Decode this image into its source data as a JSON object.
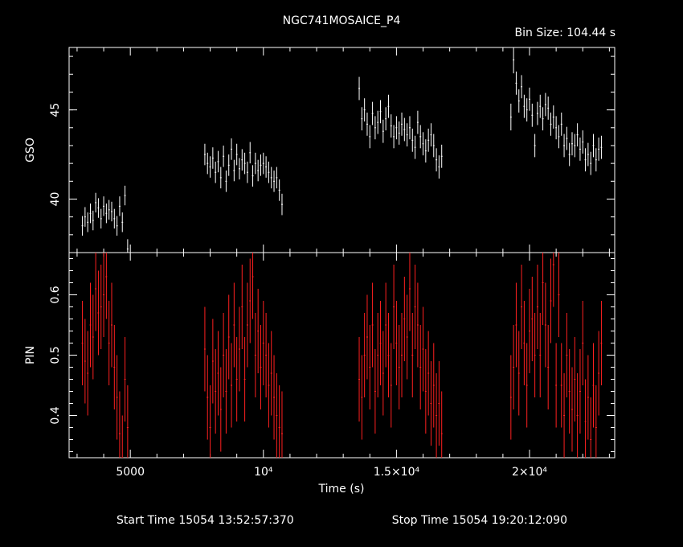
{
  "title": "NGC741MOSAICE_P4",
  "bin_size_label": "Bin Size: 104.44 s",
  "start_time_label": "Start Time 15054 13:52:57:370",
  "stop_time_label": "Stop Time 15054 19:20:12:090",
  "chart_data": {
    "type": "scatter",
    "title": "NGC741MOSAICE_P4",
    "xlabel": "Time (s)",
    "xlim": [
      2700,
      23200
    ],
    "x_ticks": [
      {
        "value": 5000,
        "label": "5000"
      },
      {
        "value": 10000,
        "label": "10⁴"
      },
      {
        "value": 15000,
        "label": "1.5×10⁴"
      },
      {
        "value": 20000,
        "label": "2×10⁴"
      }
    ],
    "panels": [
      {
        "name": "GSO",
        "ylabel": "GSO",
        "ylim": [
          37.0,
          48.5
        ],
        "y_ticks": [
          {
            "value": 40,
            "label": "40"
          },
          {
            "value": 45,
            "label": "45"
          }
        ],
        "color": "#ffffff",
        "x": [
          3200,
          3300,
          3400,
          3500,
          3600,
          3700,
          3800,
          3900,
          4000,
          4100,
          4200,
          4300,
          4400,
          4500,
          4600,
          4700,
          4800,
          4900,
          7800,
          7900,
          8000,
          8100,
          8200,
          8300,
          8400,
          8500,
          8600,
          8700,
          8800,
          8900,
          9000,
          9100,
          9200,
          9300,
          9400,
          9500,
          9600,
          9700,
          9800,
          9900,
          10000,
          10100,
          10200,
          10300,
          10400,
          10500,
          10600,
          10700,
          13600,
          13700,
          13800,
          13900,
          14000,
          14100,
          14200,
          14300,
          14400,
          14500,
          14600,
          14700,
          14800,
          14900,
          15000,
          15100,
          15200,
          15300,
          15400,
          15500,
          15600,
          15700,
          15800,
          15900,
          16000,
          16100,
          16200,
          16300,
          16400,
          16500,
          16600,
          16700,
          19300,
          19400,
          19500,
          19600,
          19700,
          19800,
          19900,
          20000,
          20100,
          20200,
          20300,
          20400,
          20500,
          20600,
          20700,
          20800,
          20900,
          21000,
          21100,
          21200,
          21300,
          21400,
          21500,
          21600,
          21700,
          21800,
          21900,
          22000,
          22100,
          22200,
          22300,
          22400,
          22500,
          22600,
          22700
        ],
        "y": [
          38.5,
          39.0,
          38.7,
          39.2,
          38.8,
          39.8,
          39.5,
          38.9,
          39.6,
          39.2,
          39.4,
          39.3,
          38.9,
          38.5,
          39.6,
          38.7,
          40.2,
          37.2,
          42.5,
          42.0,
          41.8,
          42.3,
          41.5,
          42.1,
          41.2,
          42.4,
          41.0,
          41.9,
          42.8,
          41.6,
          42.5,
          41.7,
          42.2,
          42.0,
          41.5,
          42.6,
          41.3,
          42.0,
          41.6,
          41.9,
          42.0,
          41.8,
          41.5,
          41.2,
          41.0,
          41.2,
          40.5,
          39.7,
          46.2,
          44.5,
          45.0,
          44.2,
          43.5,
          44.8,
          44.0,
          44.3,
          44.9,
          43.8,
          44.5,
          45.2,
          44.1,
          43.5,
          44.0,
          43.7,
          44.2,
          43.9,
          43.6,
          44.0,
          43.3,
          42.9,
          44.3,
          43.5,
          43.1,
          42.7,
          43.3,
          43.6,
          43.0,
          42.2,
          41.8,
          42.4,
          44.6,
          47.8,
          46.5,
          45.5,
          46.3,
          45.2,
          45.0,
          45.6,
          44.7,
          43.0,
          44.8,
          45.2,
          44.5,
          45.3,
          45.1,
          44.2,
          44.6,
          44.0,
          43.5,
          44.2,
          43.0,
          43.4,
          42.5,
          43.1,
          43.0,
          43.6,
          42.8,
          43.2,
          42.2,
          42.5,
          42.0,
          43.0,
          42.2,
          42.8,
          42.9
        ],
        "yerr": [
          0.55,
          0.55,
          0.55,
          0.55,
          0.55,
          0.55,
          0.55,
          0.55,
          0.55,
          0.55,
          0.55,
          0.55,
          0.55,
          0.55,
          0.55,
          0.55,
          0.55,
          0.55,
          0.6,
          0.6,
          0.6,
          0.6,
          0.6,
          0.6,
          0.6,
          0.6,
          0.6,
          0.6,
          0.6,
          0.6,
          0.6,
          0.6,
          0.6,
          0.6,
          0.6,
          0.6,
          0.6,
          0.6,
          0.6,
          0.6,
          0.6,
          0.6,
          0.6,
          0.6,
          0.6,
          0.6,
          0.6,
          0.6,
          0.65,
          0.65,
          0.65,
          0.65,
          0.65,
          0.65,
          0.65,
          0.65,
          0.65,
          0.65,
          0.65,
          0.65,
          0.65,
          0.65,
          0.65,
          0.65,
          0.65,
          0.65,
          0.65,
          0.65,
          0.65,
          0.65,
          0.65,
          0.65,
          0.65,
          0.65,
          0.65,
          0.65,
          0.65,
          0.65,
          0.65,
          0.65,
          0.75,
          0.75,
          0.65,
          0.65,
          0.65,
          0.65,
          0.65,
          0.65,
          0.65,
          0.65,
          0.65,
          0.65,
          0.65,
          0.65,
          0.65,
          0.65,
          0.65,
          0.65,
          0.65,
          0.65,
          0.65,
          0.65,
          0.65,
          0.65,
          0.65,
          0.65,
          0.65,
          0.65,
          0.65,
          0.65,
          0.65,
          0.65,
          0.65,
          0.65,
          0.65
        ]
      },
      {
        "name": "PIN",
        "ylabel": "PIN",
        "ylim": [
          0.33,
          0.67
        ],
        "y_ticks": [
          {
            "value": 0.4,
            "label": "0.4"
          },
          {
            "value": 0.5,
            "label": "0.5"
          },
          {
            "value": 0.6,
            "label": "0.6"
          }
        ],
        "color": "#ff2020",
        "x": [
          3200,
          3300,
          3400,
          3500,
          3600,
          3700,
          3800,
          3900,
          4000,
          4100,
          4200,
          4300,
          4400,
          4500,
          4600,
          4700,
          4800,
          4900,
          7800,
          7900,
          8000,
          8100,
          8200,
          8300,
          8400,
          8500,
          8600,
          8700,
          8800,
          8900,
          9000,
          9100,
          9200,
          9300,
          9400,
          9500,
          9600,
          9700,
          9800,
          9900,
          10000,
          10100,
          10200,
          10300,
          10400,
          10500,
          10600,
          10700,
          13600,
          13700,
          13800,
          13900,
          14000,
          14100,
          14200,
          14300,
          14400,
          14500,
          14600,
          14700,
          14800,
          14900,
          15000,
          15100,
          15200,
          15300,
          15400,
          15500,
          15600,
          15700,
          15800,
          15900,
          16000,
          16100,
          16200,
          16300,
          16400,
          16500,
          16600,
          16700,
          19300,
          19400,
          19500,
          19600,
          19700,
          19800,
          19900,
          20000,
          20100,
          20200,
          20300,
          20400,
          20500,
          20600,
          20700,
          20800,
          20900,
          21000,
          21100,
          21200,
          21300,
          21400,
          21500,
          21600,
          21700,
          21800,
          21900,
          22000,
          22100,
          22200,
          22300,
          22400,
          22500,
          22600,
          22700
        ],
        "y": [
          0.52,
          0.49,
          0.47,
          0.55,
          0.53,
          0.61,
          0.57,
          0.58,
          0.6,
          0.63,
          0.52,
          0.55,
          0.48,
          0.43,
          0.37,
          0.33,
          0.46,
          0.38,
          0.51,
          0.43,
          0.38,
          0.49,
          0.44,
          0.47,
          0.41,
          0.5,
          0.44,
          0.53,
          0.45,
          0.55,
          0.46,
          0.51,
          0.58,
          0.46,
          0.55,
          0.59,
          0.63,
          0.5,
          0.54,
          0.48,
          0.52,
          0.5,
          0.45,
          0.47,
          0.43,
          0.4,
          0.38,
          0.37,
          0.46,
          0.43,
          0.5,
          0.53,
          0.48,
          0.55,
          0.44,
          0.5,
          0.52,
          0.47,
          0.55,
          0.5,
          0.45,
          0.58,
          0.52,
          0.48,
          0.5,
          0.56,
          0.53,
          0.61,
          0.5,
          0.58,
          0.55,
          0.48,
          0.51,
          0.44,
          0.47,
          0.42,
          0.45,
          0.4,
          0.42,
          0.37,
          0.43,
          0.48,
          0.55,
          0.47,
          0.58,
          0.52,
          0.45,
          0.54,
          0.56,
          0.5,
          0.58,
          0.5,
          0.62,
          0.55,
          0.48,
          0.59,
          0.65,
          0.45,
          0.6,
          0.45,
          0.4,
          0.5,
          0.44,
          0.41,
          0.46,
          0.4,
          0.44,
          0.52,
          0.39,
          0.43,
          0.36,
          0.45,
          0.38,
          0.47,
          0.52
        ],
        "yerr": [
          0.07,
          0.07,
          0.07,
          0.07,
          0.07,
          0.07,
          0.07,
          0.07,
          0.07,
          0.07,
          0.07,
          0.07,
          0.07,
          0.07,
          0.07,
          0.07,
          0.07,
          0.07,
          0.07,
          0.07,
          0.07,
          0.07,
          0.07,
          0.07,
          0.07,
          0.07,
          0.07,
          0.07,
          0.07,
          0.07,
          0.07,
          0.07,
          0.07,
          0.07,
          0.07,
          0.07,
          0.07,
          0.07,
          0.07,
          0.07,
          0.07,
          0.07,
          0.07,
          0.07,
          0.07,
          0.07,
          0.07,
          0.07,
          0.07,
          0.07,
          0.07,
          0.07,
          0.07,
          0.07,
          0.07,
          0.07,
          0.07,
          0.07,
          0.07,
          0.07,
          0.07,
          0.07,
          0.07,
          0.07,
          0.07,
          0.07,
          0.07,
          0.07,
          0.07,
          0.07,
          0.07,
          0.07,
          0.07,
          0.07,
          0.07,
          0.07,
          0.07,
          0.07,
          0.07,
          0.07,
          0.07,
          0.07,
          0.07,
          0.07,
          0.07,
          0.07,
          0.07,
          0.07,
          0.07,
          0.07,
          0.07,
          0.07,
          0.07,
          0.07,
          0.07,
          0.07,
          0.07,
          0.07,
          0.07,
          0.07,
          0.07,
          0.07,
          0.07,
          0.07,
          0.07,
          0.07,
          0.07,
          0.07,
          0.07,
          0.07,
          0.07,
          0.07,
          0.07,
          0.07,
          0.07
        ]
      }
    ]
  }
}
